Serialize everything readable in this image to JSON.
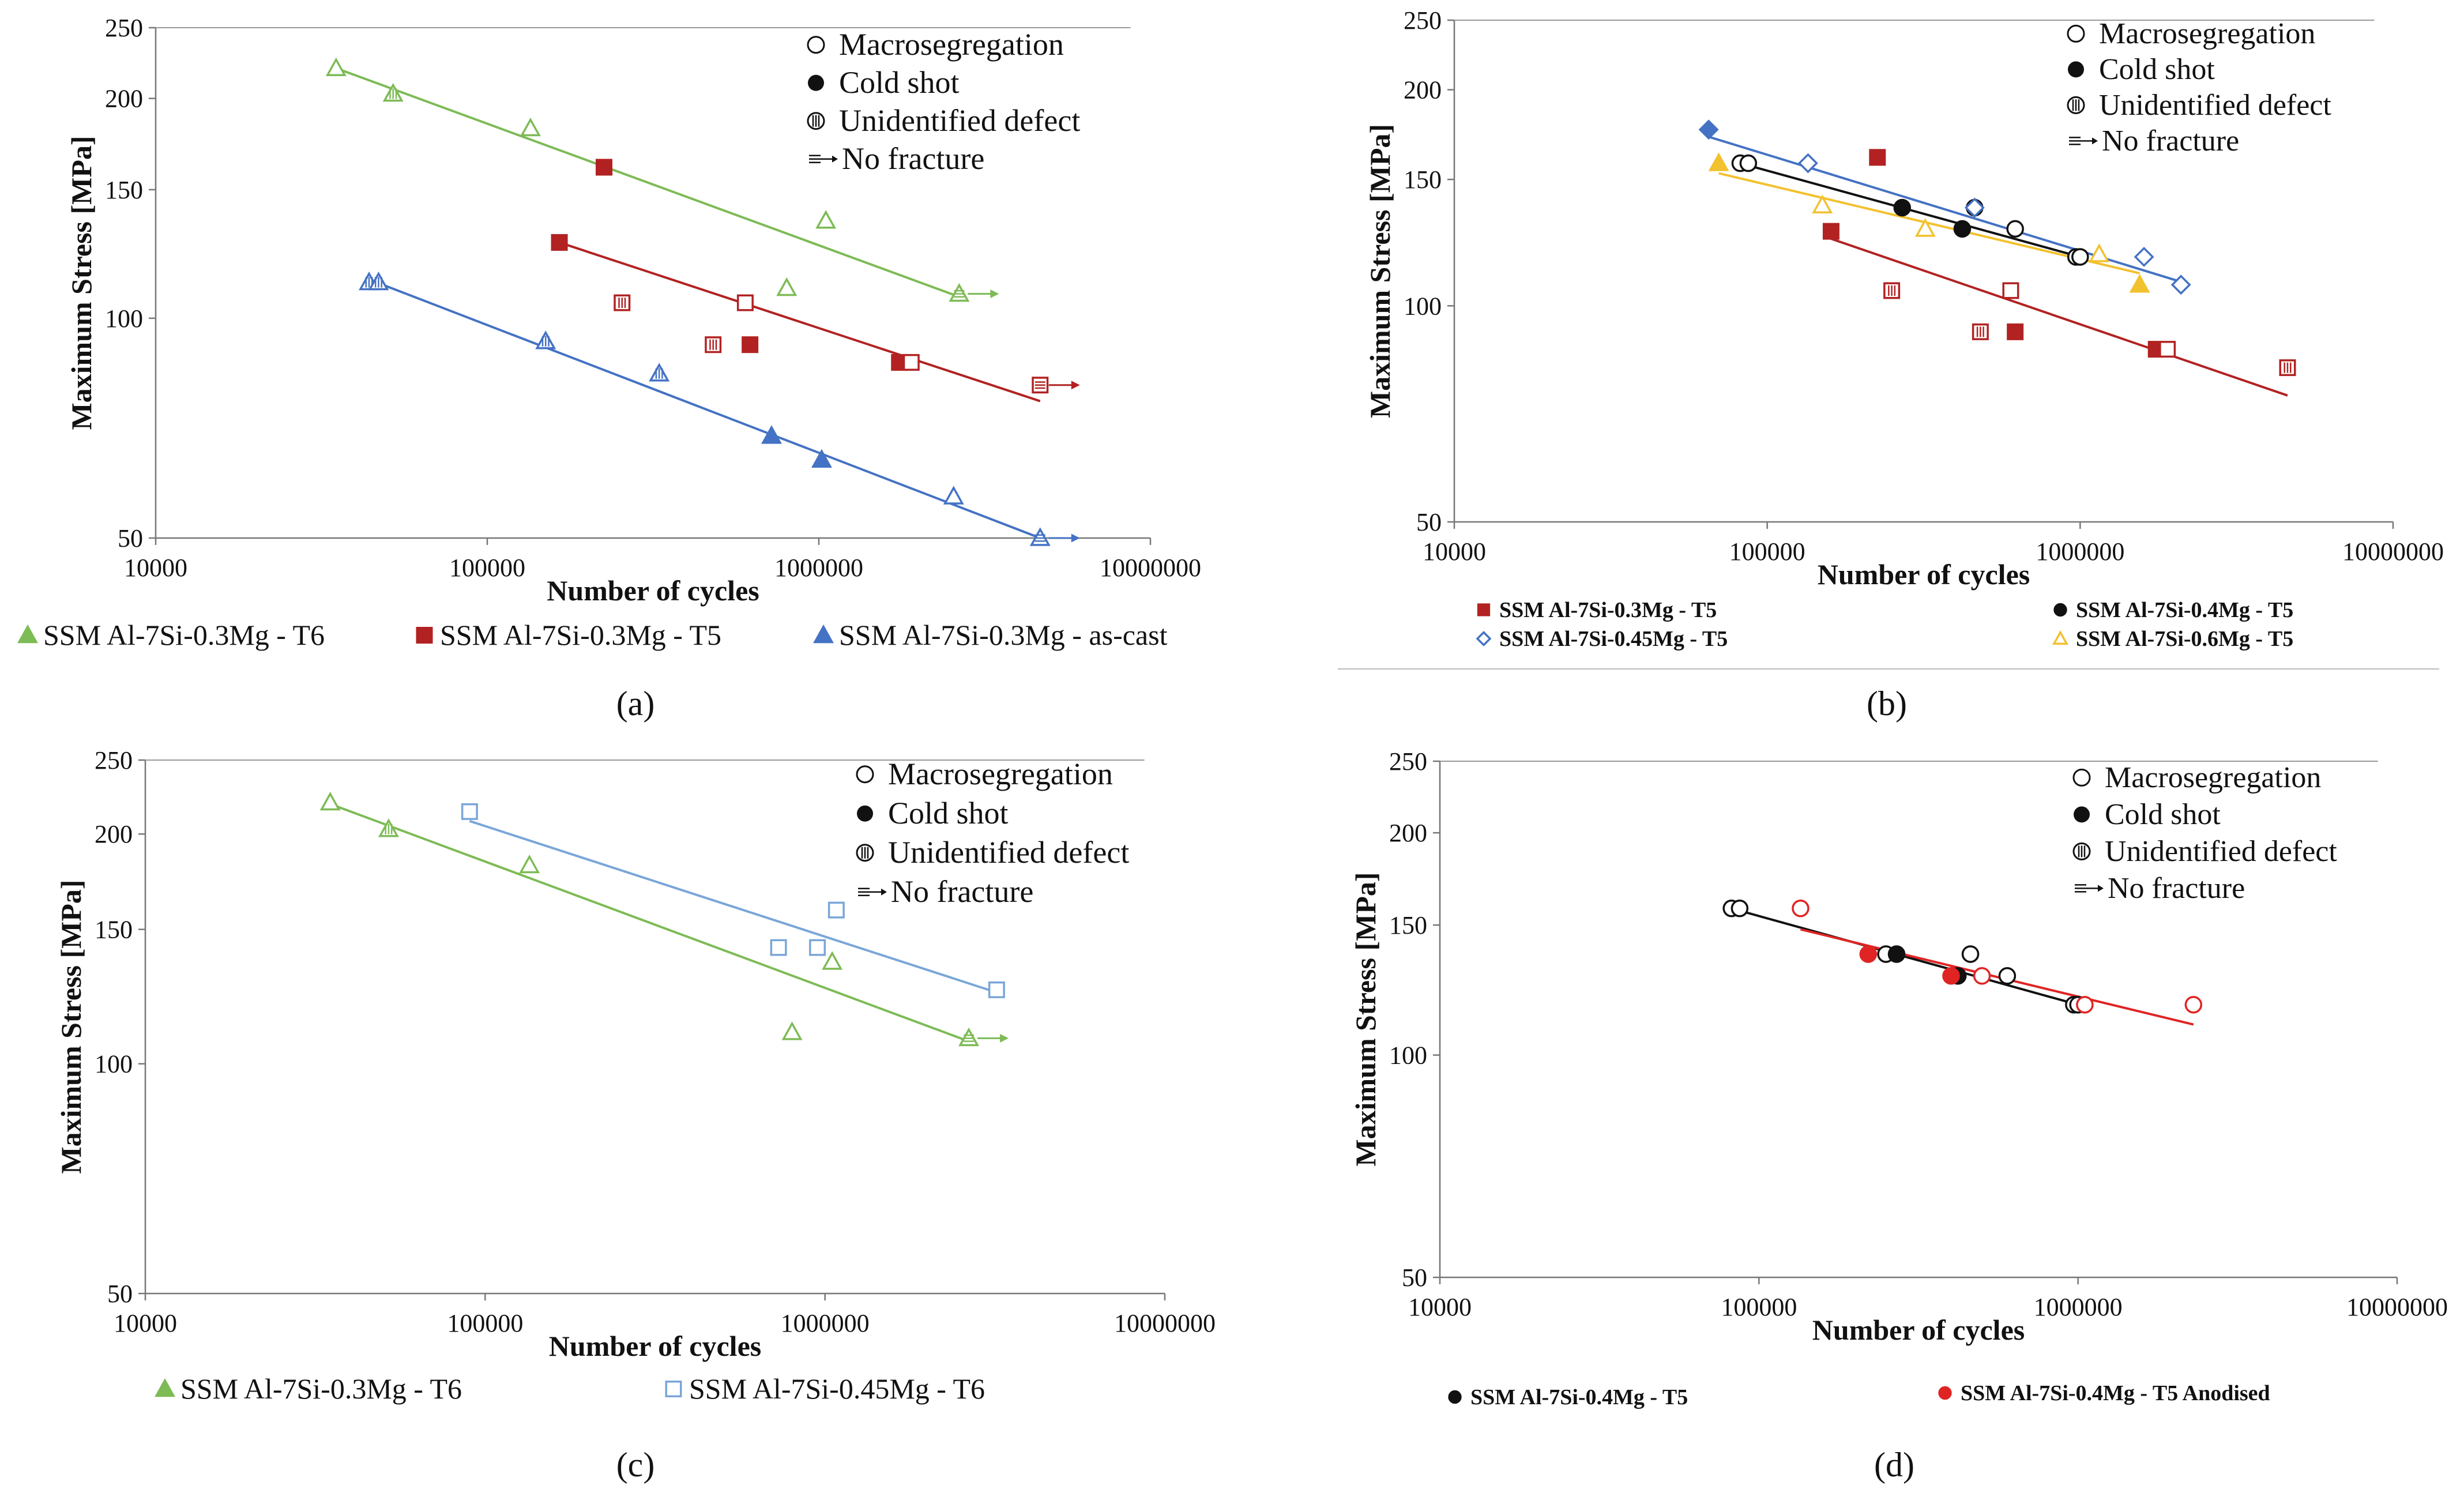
{
  "figure": {
    "panel_labels": [
      "(a)",
      "(b)",
      "(c)",
      "(d)"
    ]
  },
  "chart_data": [
    {
      "type": "scatter",
      "panel": "a",
      "xlabel": "Number of cycles",
      "ylabel": "Maximum Stress [MPa]",
      "xlim": [
        10000,
        10000000
      ],
      "ylim": [
        50,
        250
      ],
      "xscale": "log",
      "yscale": "log",
      "xticks": [
        "10000",
        "100000",
        "1000000",
        "10000000"
      ],
      "yticks": [
        "50",
        "100",
        "150",
        "200",
        "250"
      ],
      "defect_legend": [
        "Macrosegregation",
        "Cold shot",
        "Unidentified defect",
        "No fracture"
      ],
      "series": [
        {
          "name": "SSM Al-7Si-0.3Mg - T6",
          "color": "#7dbb55",
          "marker": "triangle",
          "points": [
            {
              "x": 35000,
              "y": 220,
              "m": "open"
            },
            {
              "x": 52000,
              "y": 203,
              "m": "hatch"
            },
            {
              "x": 135000,
              "y": 182,
              "m": "open"
            },
            {
              "x": 800000,
              "y": 110,
              "m": "open"
            },
            {
              "x": 1050000,
              "y": 136,
              "m": "open"
            },
            {
              "x": 2650000,
              "y": 108,
              "m": "runout"
            }
          ],
          "fit": [
            [
              35000,
              220
            ],
            [
              2650000,
              107
            ]
          ]
        },
        {
          "name": "SSM Al-7Si-0.3Mg - T5",
          "color": "#b22222",
          "marker": "square",
          "points": [
            {
              "x": 165000,
              "y": 127,
              "m": "filled"
            },
            {
              "x": 225000,
              "y": 161,
              "m": "filled"
            },
            {
              "x": 255000,
              "y": 105,
              "m": "hatch"
            },
            {
              "x": 480000,
              "y": 92,
              "m": "hatch"
            },
            {
              "x": 600000,
              "y": 105,
              "m": "open"
            },
            {
              "x": 620000,
              "y": 92,
              "m": "filled"
            },
            {
              "x": 1750000,
              "y": 87,
              "m": "filled"
            },
            {
              "x": 1900000,
              "y": 87,
              "m": "open"
            },
            {
              "x": 4650000,
              "y": 81,
              "m": "runout"
            }
          ],
          "fit": [
            [
              165000,
              127
            ],
            [
              4650000,
              77
            ]
          ]
        },
        {
          "name": "SSM Al-7Si-0.3Mg - as-cast",
          "color": "#4472c4",
          "marker": "triangle",
          "points": [
            {
              "x": 44000,
              "y": 112,
              "m": "hatch"
            },
            {
              "x": 47000,
              "y": 112,
              "m": "hatch"
            },
            {
              "x": 150000,
              "y": 93,
              "m": "hatch"
            },
            {
              "x": 330000,
              "y": 84,
              "m": "hatch"
            },
            {
              "x": 720000,
              "y": 69,
              "m": "filled"
            },
            {
              "x": 1020000,
              "y": 64,
              "m": "filled"
            },
            {
              "x": 2550000,
              "y": 57,
              "m": "open"
            },
            {
              "x": 4650000,
              "y": 50,
              "m": "runout"
            }
          ],
          "fit": [
            [
              44000,
              113
            ],
            [
              4650000,
              50
            ]
          ]
        }
      ]
    },
    {
      "type": "scatter",
      "panel": "b",
      "xlabel": "Number of cycles",
      "ylabel": "Maximum Stress [MPa]",
      "xlim": [
        10000,
        10000000
      ],
      "ylim": [
        50,
        250
      ],
      "xscale": "log",
      "yscale": "log",
      "xticks": [
        "10000",
        "100000",
        "1000000",
        "10000000"
      ],
      "yticks": [
        "50",
        "100",
        "150",
        "200",
        "250"
      ],
      "defect_legend": [
        "Macrosegregation",
        "Cold shot",
        "Unidentified defect",
        "No fracture"
      ],
      "series": [
        {
          "name": "SSM Al-7Si-0.3Mg - T5",
          "color": "#b22222",
          "marker": "square",
          "points": [
            {
              "x": 160000,
              "y": 127,
              "m": "filled"
            },
            {
              "x": 225000,
              "y": 161,
              "m": "filled"
            },
            {
              "x": 250000,
              "y": 105,
              "m": "hatch"
            },
            {
              "x": 480000,
              "y": 92,
              "m": "hatch"
            },
            {
              "x": 600000,
              "y": 105,
              "m": "open"
            },
            {
              "x": 620000,
              "y": 92,
              "m": "filled"
            },
            {
              "x": 1750000,
              "y": 87,
              "m": "filled"
            },
            {
              "x": 1900000,
              "y": 87,
              "m": "open"
            },
            {
              "x": 4600000,
              "y": 82,
              "m": "hatch"
            }
          ],
          "fit": [
            [
              160000,
              124
            ],
            [
              4600000,
              75
            ]
          ]
        },
        {
          "name": "SSM Al-7Si-0.4Mg - T5",
          "color": "#111111",
          "marker": "circle",
          "points": [
            {
              "x": 82000,
              "y": 158,
              "m": "open"
            },
            {
              "x": 87000,
              "y": 158,
              "m": "open"
            },
            {
              "x": 270000,
              "y": 137,
              "m": "filled"
            },
            {
              "x": 420000,
              "y": 128,
              "m": "filled"
            },
            {
              "x": 460000,
              "y": 137,
              "m": "open"
            },
            {
              "x": 620000,
              "y": 128,
              "m": "open"
            },
            {
              "x": 970000,
              "y": 117,
              "m": "open"
            },
            {
              "x": 1000000,
              "y": 117,
              "m": "open"
            }
          ],
          "fit": [
            [
              82000,
              158
            ],
            [
              1000000,
              117
            ]
          ]
        },
        {
          "name": "SSM Al-7Si-0.45Mg - T5",
          "color": "#4472c4",
          "marker": "diamond",
          "points": [
            {
              "x": 65000,
              "y": 176,
              "m": "filled"
            },
            {
              "x": 135000,
              "y": 158,
              "m": "open"
            },
            {
              "x": 460000,
              "y": 137,
              "m": "open"
            },
            {
              "x": 1600000,
              "y": 117,
              "m": "open"
            },
            {
              "x": 2100000,
              "y": 107,
              "m": "open"
            }
          ],
          "fit": [
            [
              65000,
              172
            ],
            [
              2100000,
              108
            ]
          ]
        },
        {
          "name": "SSM Al-7Si-0.6Mg - T5",
          "color": "#f2c12e",
          "marker": "triangle",
          "points": [
            {
              "x": 70000,
              "y": 158,
              "m": "filled"
            },
            {
              "x": 150000,
              "y": 138,
              "m": "open"
            },
            {
              "x": 320000,
              "y": 128,
              "m": "open"
            },
            {
              "x": 1150000,
              "y": 118,
              "m": "open"
            },
            {
              "x": 1550000,
              "y": 107,
              "m": "filled"
            }
          ],
          "fit": [
            [
              70000,
              153
            ],
            [
              1550000,
              111
            ]
          ]
        }
      ]
    },
    {
      "type": "scatter",
      "panel": "c",
      "xlabel": "Number of cycles",
      "ylabel": "Maximum Stress [MPa]",
      "xlim": [
        10000,
        10000000
      ],
      "ylim": [
        50,
        250
      ],
      "xscale": "log",
      "yscale": "log",
      "xticks": [
        "10000",
        "100000",
        "1000000",
        "10000000"
      ],
      "yticks": [
        "50",
        "100",
        "150",
        "200",
        "250"
      ],
      "defect_legend": [
        "Macrosegregation",
        "Cold shot",
        "Unidentified defect",
        "No fracture"
      ],
      "series": [
        {
          "name": "SSM Al-7Si-0.3Mg - T6",
          "color": "#7dbb55",
          "marker": "triangle",
          "points": [
            {
              "x": 35000,
              "y": 220,
              "m": "open"
            },
            {
              "x": 52000,
              "y": 203,
              "m": "hatch"
            },
            {
              "x": 135000,
              "y": 182,
              "m": "open"
            },
            {
              "x": 800000,
              "y": 110,
              "m": "open"
            },
            {
              "x": 1050000,
              "y": 136,
              "m": "open"
            },
            {
              "x": 2650000,
              "y": 108,
              "m": "runout"
            }
          ],
          "fit": [
            [
              35000,
              219
            ],
            [
              2650000,
              107
            ]
          ]
        },
        {
          "name": "SSM Al-7Si-0.45Mg - T6",
          "color": "#7aa6d8",
          "marker": "square",
          "points": [
            {
              "x": 90000,
              "y": 214,
              "m": "open"
            },
            {
              "x": 730000,
              "y": 142,
              "m": "open"
            },
            {
              "x": 950000,
              "y": 142,
              "m": "open"
            },
            {
              "x": 1080000,
              "y": 159,
              "m": "open"
            },
            {
              "x": 3200000,
              "y": 125,
              "m": "open"
            }
          ],
          "fit": [
            [
              90000,
              208
            ],
            [
              3200000,
              124
            ]
          ]
        }
      ]
    },
    {
      "type": "scatter",
      "panel": "d",
      "xlabel": "Number of cycles",
      "ylabel": "Maximum Stress [MPa]",
      "xlim": [
        10000,
        10000000
      ],
      "ylim": [
        50,
        250
      ],
      "xscale": "log",
      "yscale": "log",
      "xticks": [
        "10000",
        "100000",
        "1000000",
        "10000000"
      ],
      "yticks": [
        "50",
        "100",
        "150",
        "200",
        "250"
      ],
      "defect_legend": [
        "Macrosegregation",
        "Cold shot",
        "Unidentified defect",
        "No fracture"
      ],
      "series": [
        {
          "name": "SSM Al-7Si-0.4Mg - T5",
          "color": "#111111",
          "marker": "circle",
          "points": [
            {
              "x": 82000,
              "y": 158,
              "m": "open"
            },
            {
              "x": 87000,
              "y": 158,
              "m": "open"
            },
            {
              "x": 250000,
              "y": 137,
              "m": "open"
            },
            {
              "x": 270000,
              "y": 137,
              "m": "filled"
            },
            {
              "x": 420000,
              "y": 128,
              "m": "filled"
            },
            {
              "x": 460000,
              "y": 137,
              "m": "open"
            },
            {
              "x": 600000,
              "y": 128,
              "m": "open"
            },
            {
              "x": 970000,
              "y": 117,
              "m": "open"
            },
            {
              "x": 1000000,
              "y": 117,
              "m": "open"
            }
          ],
          "fit": [
            [
              82000,
              158
            ],
            [
              1000000,
              117
            ]
          ]
        },
        {
          "name": "SSM Al-7Si-0.4Mg - T5 Anodised",
          "color": "#e02424",
          "marker": "circle",
          "points": [
            {
              "x": 135000,
              "y": 158,
              "m": "open"
            },
            {
              "x": 220000,
              "y": 137,
              "m": "filled"
            },
            {
              "x": 400000,
              "y": 128,
              "m": "filled"
            },
            {
              "x": 500000,
              "y": 128,
              "m": "open"
            },
            {
              "x": 1050000,
              "y": 117,
              "m": "open"
            },
            {
              "x": 2300000,
              "y": 117,
              "m": "open"
            }
          ],
          "fit": [
            [
              135000,
              148
            ],
            [
              2300000,
              110
            ]
          ]
        }
      ]
    }
  ]
}
